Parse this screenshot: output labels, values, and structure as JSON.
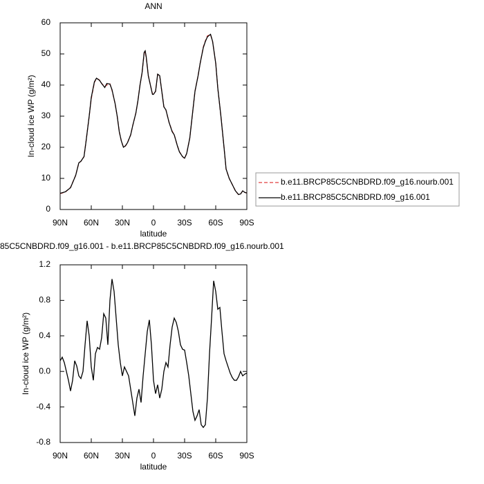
{
  "chart_data": [
    {
      "type": "line",
      "title": "ANN",
      "xlabel": "latitude",
      "ylabel": "In-cloud ice WP (g/m²)",
      "xlim": [
        90,
        -90
      ],
      "ylim": [
        0,
        60
      ],
      "xticks": [
        {
          "value": 90,
          "label": "90N"
        },
        {
          "value": 60,
          "label": "60N"
        },
        {
          "value": 30,
          "label": "30N"
        },
        0,
        {
          "value": -30,
          "label": "30S"
        },
        {
          "value": -60,
          "label": "60S"
        },
        {
          "value": -90,
          "label": "90S"
        }
      ],
      "yticks": [
        0,
        10,
        20,
        30,
        40,
        50,
        60
      ],
      "legend": "right",
      "x": [
        90,
        85,
        80,
        75,
        72,
        70,
        67,
        65,
        62,
        60,
        57,
        55,
        52,
        50,
        47,
        45,
        42,
        40,
        37,
        35,
        33,
        31,
        29,
        27,
        25,
        22,
        20,
        17,
        15,
        13,
        11,
        9,
        8,
        7,
        5,
        3,
        1,
        0,
        -2,
        -4,
        -6,
        -8,
        -10,
        -12,
        -15,
        -18,
        -20,
        -23,
        -25,
        -28,
        -30,
        -32,
        -35,
        -38,
        -40,
        -43,
        -45,
        -48,
        -50,
        -52,
        -55,
        -57,
        -60,
        -62,
        -65,
        -68,
        -70,
        -73,
        -76,
        -79,
        -82,
        -84,
        -86,
        -88,
        -90
      ],
      "series": [
        {
          "name": "b.e11.BRCP85C5CNBDRD.f09_g16.nourb.001",
          "color": "#e03c3c",
          "line_style": "dashed",
          "values": [
            5.1,
            5.6,
            7.1,
            11,
            15,
            15.5,
            17,
            22,
            30,
            35.6,
            40.8,
            42.2,
            41.6,
            40.5,
            39.5,
            40,
            40.4,
            38.3,
            34,
            30,
            25,
            22,
            20.1,
            20.4,
            21.6,
            24,
            27,
            31,
            35,
            40,
            44,
            50.2,
            50.7,
            48.7,
            43,
            40,
            37.2,
            37,
            38,
            43.4,
            42.9,
            38,
            33,
            32,
            28,
            25.2,
            24,
            20.5,
            18.6,
            17,
            16.4,
            18,
            23,
            32,
            38,
            43,
            47,
            52.2,
            54.2,
            55.8,
            56.2,
            54,
            47,
            39,
            30,
            20,
            13,
            10,
            8,
            6,
            4.8,
            5,
            6,
            5.5,
            5.3
          ]
        },
        {
          "name": "b.e11.BRCP85C5CNBDRD.f09_g16.001",
          "color": "#000000",
          "line_style": "solid",
          "values": [
            5.2,
            5.7,
            7,
            11,
            15,
            15.5,
            17,
            22,
            30,
            36,
            41,
            42.2,
            41.5,
            40.5,
            39.2,
            40.5,
            40.3,
            38.5,
            34,
            30,
            25,
            22,
            20,
            20.5,
            21.5,
            24,
            27,
            31,
            35,
            40,
            44,
            50.5,
            51,
            49,
            43,
            40,
            37,
            37,
            38,
            43.5,
            43,
            38,
            33,
            32,
            28,
            25,
            24,
            20.5,
            18.5,
            17,
            16.5,
            18,
            23,
            32,
            38,
            43,
            47,
            52,
            54,
            55.5,
            56.3,
            54,
            47,
            39,
            30,
            20,
            13,
            10,
            8,
            6,
            4.8,
            5,
            6,
            5.5,
            5.3
          ]
        }
      ]
    },
    {
      "type": "line",
      "title": "85C5CNBDRD.f09_g16.001 - b.e11.BRCP85C5CNBDRD.f09_g16.nourb.001",
      "xlabel": "latitude",
      "ylabel": "In-cloud ice WP (g/m²)",
      "xlim": [
        90,
        -90
      ],
      "ylim": [
        -0.8,
        1.2
      ],
      "xticks": [
        {
          "value": 90,
          "label": "90N"
        },
        {
          "value": 60,
          "label": "60N"
        },
        {
          "value": 30,
          "label": "30N"
        },
        0,
        {
          "value": -30,
          "label": "30S"
        },
        {
          "value": -60,
          "label": "60S"
        },
        {
          "value": -90,
          "label": "90S"
        }
      ],
      "yticks": [
        -0.8,
        -0.4,
        {
          "value": 0,
          "label": "0.0"
        },
        0.4,
        0.8,
        1.2
      ],
      "x": [
        90,
        88,
        86,
        84,
        82,
        80,
        78,
        76,
        74,
        72,
        70,
        68,
        66,
        64,
        62,
        60,
        58,
        56,
        54,
        52,
        50,
        48,
        46,
        44,
        42,
        40,
        38,
        36,
        34,
        32,
        30,
        28,
        26,
        24,
        22,
        20,
        18,
        16,
        14,
        12,
        10,
        8,
        6,
        4,
        2,
        0,
        -2,
        -4,
        -6,
        -8,
        -10,
        -12,
        -14,
        -16,
        -18,
        -20,
        -22,
        -24,
        -26,
        -28,
        -30,
        -32,
        -34,
        -36,
        -38,
        -40,
        -42,
        -44,
        -46,
        -48,
        -50,
        -52,
        -54,
        -56,
        -58,
        -60,
        -62,
        -64,
        -66,
        -68,
        -70,
        -72,
        -74,
        -76,
        -78,
        -80,
        -82,
        -84,
        -86,
        -88,
        -90
      ],
      "series": [
        {
          "color": "#000000",
          "values": [
            0.12,
            0.16,
            0.1,
            0.0,
            -0.1,
            -0.22,
            -0.1,
            0.12,
            0.06,
            -0.05,
            -0.08,
            0.0,
            0.3,
            0.57,
            0.4,
            0.05,
            -0.1,
            0.2,
            0.27,
            0.25,
            0.38,
            0.65,
            0.6,
            0.3,
            0.8,
            1.04,
            0.9,
            0.6,
            0.3,
            0.1,
            -0.05,
            0.05,
            0.0,
            -0.05,
            -0.2,
            -0.35,
            -0.5,
            -0.3,
            -0.2,
            -0.35,
            -0.05,
            0.2,
            0.45,
            0.58,
            0.3,
            -0.1,
            -0.25,
            -0.15,
            -0.3,
            -0.2,
            0.0,
            0.1,
            0.05,
            0.3,
            0.5,
            0.6,
            0.55,
            0.45,
            0.3,
            0.25,
            0.24,
            0.1,
            -0.05,
            -0.25,
            -0.45,
            -0.55,
            -0.5,
            -0.43,
            -0.6,
            -0.63,
            -0.6,
            -0.3,
            0.2,
            0.6,
            1.02,
            0.9,
            0.7,
            0.72,
            0.45,
            0.2,
            0.12,
            0.05,
            -0.02,
            -0.07,
            -0.1,
            -0.1,
            -0.06,
            0.0,
            -0.05,
            -0.03,
            -0.02
          ]
        }
      ]
    }
  ]
}
